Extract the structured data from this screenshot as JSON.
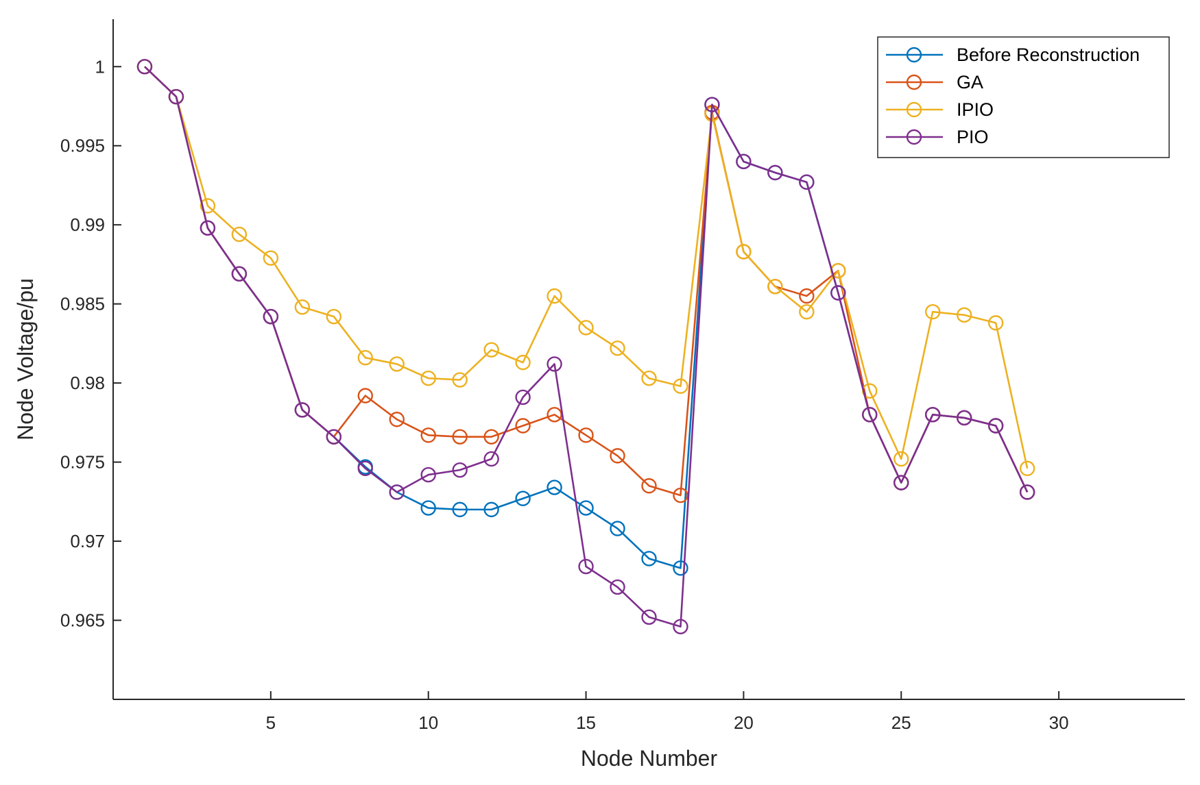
{
  "chart_data": {
    "type": "line",
    "title": "",
    "xlabel": "Node Number",
    "ylabel": "Node Voltage/pu",
    "xlim": [
      0,
      34
    ],
    "ylim": [
      0.96,
      1.003
    ],
    "xticks": [
      5,
      10,
      15,
      20,
      25,
      30
    ],
    "yticks": [
      0.965,
      0.97,
      0.975,
      0.98,
      0.985,
      0.99,
      0.995,
      1
    ],
    "ytick_labels": [
      "0.965",
      "0.97",
      "0.975",
      "0.98",
      "0.985",
      "0.99",
      "0.995",
      "1"
    ],
    "grid": false,
    "legend_position": "top-right",
    "series": [
      {
        "name": "Before Reconstruction",
        "color": "#0072BD",
        "x": [
          1,
          2,
          3,
          4,
          5,
          6,
          7,
          8,
          9,
          10,
          11,
          12,
          13,
          14,
          15,
          16,
          17,
          18,
          19,
          20,
          21,
          22,
          23,
          24,
          25,
          26,
          27,
          28,
          29
        ],
        "values": [
          1.0,
          0.9981,
          0.9898,
          0.9869,
          0.9842,
          0.9783,
          0.9766,
          0.9747,
          0.9731,
          0.9721,
          0.972,
          0.972,
          0.9727,
          0.9734,
          0.9721,
          0.9708,
          0.9689,
          0.9683,
          0.9976,
          0.994,
          0.9933,
          0.9927,
          0.9857,
          0.978,
          0.9737,
          0.978,
          0.9778,
          0.9773,
          0.9731
        ]
      },
      {
        "name": "GA",
        "color": "#D95319",
        "x": [
          1,
          2,
          3,
          4,
          5,
          6,
          7,
          8,
          9,
          10,
          11,
          12,
          13,
          14,
          15,
          16,
          17,
          18,
          19,
          20,
          21,
          22,
          23,
          24,
          25,
          26,
          27,
          28,
          29
        ],
        "values": [
          1.0,
          0.9981,
          0.9898,
          0.9869,
          0.9842,
          0.9783,
          0.9766,
          0.9792,
          0.9777,
          0.9767,
          0.9766,
          0.9766,
          0.9773,
          0.978,
          0.9767,
          0.9754,
          0.9735,
          0.9729,
          0.9971,
          0.9883,
          0.9861,
          0.9855,
          0.9871,
          0.978,
          0.9737,
          0.978,
          0.9778,
          0.9773,
          0.9731
        ]
      },
      {
        "name": "IPIO",
        "color": "#EDB120",
        "x": [
          1,
          2,
          3,
          4,
          5,
          6,
          7,
          8,
          9,
          10,
          11,
          12,
          13,
          14,
          15,
          16,
          17,
          18,
          19,
          20,
          21,
          22,
          23,
          24,
          25,
          26,
          27,
          28,
          29
        ],
        "values": [
          1.0,
          0.9981,
          0.9912,
          0.9894,
          0.9879,
          0.9848,
          0.9842,
          0.9816,
          0.9812,
          0.9803,
          0.9802,
          0.9821,
          0.9813,
          0.9855,
          0.9835,
          0.9822,
          0.9803,
          0.9798,
          0.997,
          0.9883,
          0.9861,
          0.9845,
          0.9871,
          0.9795,
          0.9752,
          0.9845,
          0.9843,
          0.9838,
          0.9746
        ]
      },
      {
        "name": "PIO",
        "color": "#7E2F8E",
        "x": [
          1,
          2,
          3,
          4,
          5,
          6,
          7,
          8,
          9,
          10,
          11,
          12,
          13,
          14,
          15,
          16,
          17,
          18,
          19,
          20,
          21,
          22,
          23,
          24,
          25,
          26,
          27,
          28,
          29
        ],
        "values": [
          1.0,
          0.9981,
          0.9898,
          0.9869,
          0.9842,
          0.9783,
          0.9766,
          0.9746,
          0.9731,
          0.9742,
          0.9745,
          0.9752,
          0.9791,
          0.9812,
          0.9684,
          0.9671,
          0.9652,
          0.9646,
          0.9976,
          0.994,
          0.9933,
          0.9927,
          0.9857,
          0.978,
          0.9737,
          0.978,
          0.9778,
          0.9773,
          0.9731
        ]
      }
    ]
  }
}
